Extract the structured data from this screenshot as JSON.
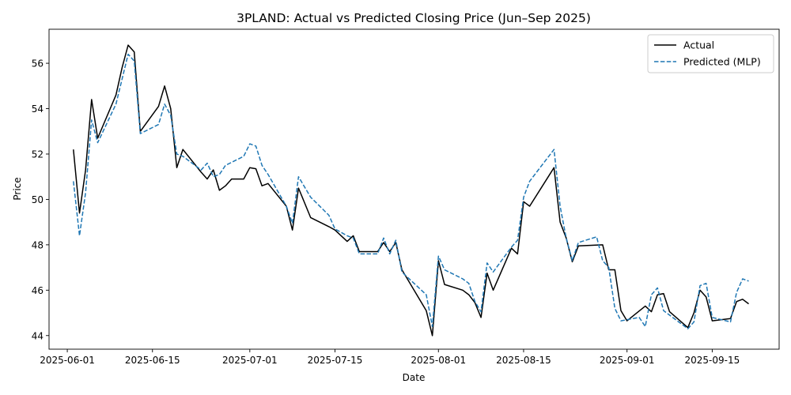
{
  "chart_data": {
    "type": "line",
    "title": "3PLAND: Actual vs Predicted Closing Price (Jun–Sep 2025)",
    "xlabel": "Date",
    "ylabel": "Price",
    "xlim": [
      "2025-05-29",
      "2025-09-26"
    ],
    "ylim": [
      43.4,
      57.5
    ],
    "x_ticks": [
      "2025-06-01",
      "2025-06-15",
      "2025-07-01",
      "2025-07-15",
      "2025-08-01",
      "2025-08-15",
      "2025-09-01",
      "2025-09-15"
    ],
    "y_ticks": [
      44,
      46,
      48,
      50,
      52,
      54,
      56
    ],
    "legend_position": "top-right",
    "grid": false,
    "series": [
      {
        "name": "Actual",
        "color": "#000000",
        "style": "solid",
        "points": [
          [
            "2025-06-02",
            52.2
          ],
          [
            "2025-06-03",
            49.4
          ],
          [
            "2025-06-04",
            51.3
          ],
          [
            "2025-06-05",
            54.4
          ],
          [
            "2025-06-06",
            52.7
          ],
          [
            "2025-06-09",
            54.6
          ],
          [
            "2025-06-10",
            55.8
          ],
          [
            "2025-06-11",
            56.8
          ],
          [
            "2025-06-12",
            56.5
          ],
          [
            "2025-06-13",
            53.0
          ],
          [
            "2025-06-16",
            54.1
          ],
          [
            "2025-06-17",
            55.0
          ],
          [
            "2025-06-18",
            54.0
          ],
          [
            "2025-06-19",
            51.4
          ],
          [
            "2025-06-20",
            52.2
          ],
          [
            "2025-06-23",
            51.2
          ],
          [
            "2025-06-24",
            50.9
          ],
          [
            "2025-06-25",
            51.3
          ],
          [
            "2025-06-26",
            50.4
          ],
          [
            "2025-06-27",
            50.6
          ],
          [
            "2025-06-28",
            50.9
          ],
          [
            "2025-06-30",
            50.9
          ],
          [
            "2025-07-01",
            51.4
          ],
          [
            "2025-07-02",
            51.35
          ],
          [
            "2025-07-03",
            50.6
          ],
          [
            "2025-07-04",
            50.7
          ],
          [
            "2025-07-07",
            49.7
          ],
          [
            "2025-07-08",
            48.65
          ],
          [
            "2025-07-09",
            50.5
          ],
          [
            "2025-07-11",
            49.2
          ],
          [
            "2025-07-14",
            48.8
          ],
          [
            "2025-07-15",
            48.65
          ],
          [
            "2025-07-17",
            48.15
          ],
          [
            "2025-07-18",
            48.4
          ],
          [
            "2025-07-19",
            47.7
          ],
          [
            "2025-07-22",
            47.7
          ],
          [
            "2025-07-23",
            48.1
          ],
          [
            "2025-07-24",
            47.7
          ],
          [
            "2025-07-25",
            48.1
          ],
          [
            "2025-07-26",
            46.9
          ],
          [
            "2025-07-30",
            45.1
          ],
          [
            "2025-07-31",
            44.0
          ],
          [
            "2025-08-01",
            47.3
          ],
          [
            "2025-08-02",
            46.25
          ],
          [
            "2025-08-05",
            46.0
          ],
          [
            "2025-08-06",
            45.8
          ],
          [
            "2025-08-07",
            45.45
          ],
          [
            "2025-08-08",
            44.8
          ],
          [
            "2025-08-09",
            46.75
          ],
          [
            "2025-08-10",
            46.0
          ],
          [
            "2025-08-13",
            47.85
          ],
          [
            "2025-08-14",
            47.6
          ],
          [
            "2025-08-15",
            49.9
          ],
          [
            "2025-08-16",
            49.7
          ],
          [
            "2025-08-20",
            51.4
          ],
          [
            "2025-08-21",
            49.0
          ],
          [
            "2025-08-22",
            48.3
          ],
          [
            "2025-08-23",
            47.25
          ],
          [
            "2025-08-24",
            47.95
          ],
          [
            "2025-08-28",
            48.0
          ],
          [
            "2025-08-29",
            46.9
          ],
          [
            "2025-08-30",
            46.9
          ],
          [
            "2025-08-31",
            45.1
          ],
          [
            "2025-09-01",
            44.65
          ],
          [
            "2025-09-04",
            45.3
          ],
          [
            "2025-09-05",
            45.05
          ],
          [
            "2025-09-06",
            45.8
          ],
          [
            "2025-09-07",
            45.85
          ],
          [
            "2025-09-08",
            45.05
          ],
          [
            "2025-09-11",
            44.35
          ],
          [
            "2025-09-12",
            45.0
          ],
          [
            "2025-09-13",
            46.0
          ],
          [
            "2025-09-14",
            45.7
          ],
          [
            "2025-09-15",
            44.65
          ],
          [
            "2025-09-18",
            44.75
          ],
          [
            "2025-09-19",
            45.5
          ],
          [
            "2025-09-20",
            45.6
          ],
          [
            "2025-09-21",
            45.4
          ]
        ]
      },
      {
        "name": "Predicted (MLP)",
        "color": "#1f77b4",
        "style": "dashed",
        "points": [
          [
            "2025-06-02",
            50.8
          ],
          [
            "2025-06-03",
            48.4
          ],
          [
            "2025-06-04",
            50.3
          ],
          [
            "2025-06-05",
            53.5
          ],
          [
            "2025-06-06",
            52.5
          ],
          [
            "2025-06-09",
            54.2
          ],
          [
            "2025-06-10",
            55.3
          ],
          [
            "2025-06-11",
            56.4
          ],
          [
            "2025-06-12",
            56.1
          ],
          [
            "2025-06-13",
            52.9
          ],
          [
            "2025-06-16",
            53.3
          ],
          [
            "2025-06-17",
            54.2
          ],
          [
            "2025-06-18",
            53.7
          ],
          [
            "2025-06-19",
            52.0
          ],
          [
            "2025-06-20",
            51.9
          ],
          [
            "2025-06-23",
            51.3
          ],
          [
            "2025-06-24",
            51.6
          ],
          [
            "2025-06-25",
            51.0
          ],
          [
            "2025-06-26",
            51.1
          ],
          [
            "2025-06-27",
            51.5
          ],
          [
            "2025-06-30",
            51.9
          ],
          [
            "2025-07-01",
            52.45
          ],
          [
            "2025-07-02",
            52.35
          ],
          [
            "2025-07-03",
            51.5
          ],
          [
            "2025-07-04",
            51.1
          ],
          [
            "2025-07-07",
            49.7
          ],
          [
            "2025-07-08",
            48.95
          ],
          [
            "2025-07-09",
            51.0
          ],
          [
            "2025-07-11",
            50.1
          ],
          [
            "2025-07-14",
            49.3
          ],
          [
            "2025-07-15",
            48.7
          ],
          [
            "2025-07-17",
            48.4
          ],
          [
            "2025-07-18",
            48.3
          ],
          [
            "2025-07-19",
            47.6
          ],
          [
            "2025-07-22",
            47.6
          ],
          [
            "2025-07-23",
            48.3
          ],
          [
            "2025-07-24",
            47.6
          ],
          [
            "2025-07-25",
            48.2
          ],
          [
            "2025-07-26",
            46.8
          ],
          [
            "2025-07-30",
            45.8
          ],
          [
            "2025-07-31",
            44.4
          ],
          [
            "2025-08-01",
            47.5
          ],
          [
            "2025-08-02",
            46.9
          ],
          [
            "2025-08-05",
            46.5
          ],
          [
            "2025-08-06",
            46.3
          ],
          [
            "2025-08-07",
            45.5
          ],
          [
            "2025-08-08",
            45.05
          ],
          [
            "2025-08-09",
            47.2
          ],
          [
            "2025-08-10",
            46.8
          ],
          [
            "2025-08-13",
            47.9
          ],
          [
            "2025-08-14",
            48.2
          ],
          [
            "2025-08-15",
            50.1
          ],
          [
            "2025-08-16",
            50.8
          ],
          [
            "2025-08-20",
            52.2
          ],
          [
            "2025-08-21",
            49.7
          ],
          [
            "2025-08-22",
            48.3
          ],
          [
            "2025-08-23",
            47.3
          ],
          [
            "2025-08-24",
            48.1
          ],
          [
            "2025-08-27",
            48.35
          ],
          [
            "2025-08-28",
            47.3
          ],
          [
            "2025-08-29",
            47.0
          ],
          [
            "2025-08-30",
            45.2
          ],
          [
            "2025-08-31",
            44.65
          ],
          [
            "2025-09-03",
            44.8
          ],
          [
            "2025-09-04",
            44.4
          ],
          [
            "2025-09-05",
            45.8
          ],
          [
            "2025-09-06",
            46.1
          ],
          [
            "2025-09-07",
            45.1
          ],
          [
            "2025-09-08",
            44.9
          ],
          [
            "2025-09-11",
            44.3
          ],
          [
            "2025-09-12",
            44.6
          ],
          [
            "2025-09-13",
            46.2
          ],
          [
            "2025-09-14",
            46.3
          ],
          [
            "2025-09-15",
            44.8
          ],
          [
            "2025-09-18",
            44.6
          ],
          [
            "2025-09-19",
            45.9
          ],
          [
            "2025-09-20",
            46.5
          ],
          [
            "2025-09-21",
            46.4
          ]
        ]
      }
    ]
  }
}
